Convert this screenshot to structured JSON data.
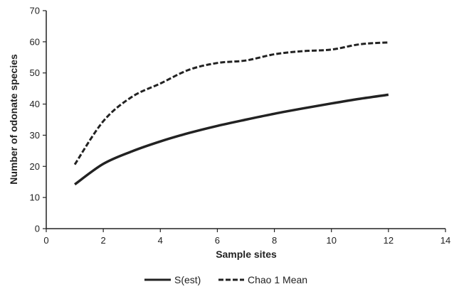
{
  "chart_data": {
    "type": "line",
    "title": "",
    "xlabel": "Sample sites",
    "ylabel": "Number of odonate species",
    "xlim": [
      0,
      14
    ],
    "ylim": [
      0,
      70
    ],
    "xticks": [
      0,
      2,
      4,
      6,
      8,
      10,
      12,
      14
    ],
    "yticks": [
      0,
      10,
      20,
      30,
      40,
      50,
      60,
      70
    ],
    "grid": false,
    "legend_position": "bottom",
    "x": [
      1,
      2,
      3,
      4,
      5,
      6,
      7,
      8,
      9,
      10,
      11,
      12
    ],
    "series": [
      {
        "name": "S(est)",
        "style": "solid",
        "color": "#222222",
        "values": [
          14.2,
          20.8,
          24.8,
          28.0,
          30.7,
          33.0,
          35.0,
          36.9,
          38.6,
          40.2,
          41.7,
          43.0
        ]
      },
      {
        "name": "Chao 1 Mean",
        "style": "dashed",
        "color": "#222222",
        "values": [
          20.6,
          34.5,
          42.3,
          46.6,
          51.0,
          53.2,
          54.0,
          56.0,
          57.0,
          57.5,
          59.2,
          59.8
        ]
      }
    ]
  }
}
